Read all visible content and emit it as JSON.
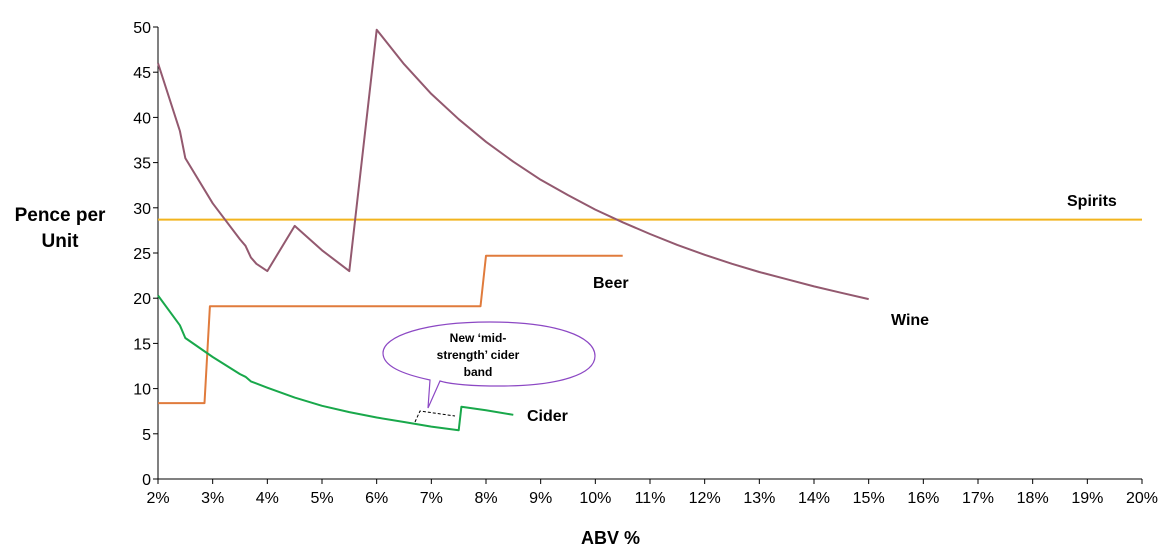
{
  "chart_data": {
    "type": "line",
    "xlabel": "ABV %",
    "ylabel_line1": "Pence per",
    "ylabel_line2": "Unit",
    "xlim": [
      2,
      20
    ],
    "ylim": [
      0,
      50
    ],
    "x_ticks": [
      2,
      3,
      4,
      5,
      6,
      7,
      8,
      9,
      10,
      11,
      12,
      13,
      14,
      15,
      16,
      17,
      18,
      19,
      20
    ],
    "x_tick_labels": [
      "2%",
      "3%",
      "4%",
      "5%",
      "6%",
      "7%",
      "8%",
      "9%",
      "10%",
      "11%",
      "12%",
      "13%",
      "14%",
      "15%",
      "16%",
      "17%",
      "18%",
      "19%",
      "20%"
    ],
    "y_ticks": [
      0,
      5,
      10,
      15,
      20,
      25,
      30,
      35,
      40,
      45,
      50
    ],
    "grid": false,
    "series": [
      {
        "name": "Spirits",
        "color": "#f2b41e",
        "points": [
          [
            2,
            28.7
          ],
          [
            20,
            28.7
          ]
        ]
      },
      {
        "name": "Wine",
        "color": "#93596f",
        "points": [
          [
            2,
            46
          ],
          [
            2.4,
            38.5
          ],
          [
            2.5,
            35.5
          ],
          [
            3,
            30.5
          ],
          [
            3.5,
            26.5
          ],
          [
            3.6,
            25.8
          ],
          [
            3.7,
            24.5
          ],
          [
            3.8,
            23.8
          ],
          [
            4,
            23.0
          ],
          [
            4.5,
            28.0
          ],
          [
            5,
            25.3
          ],
          [
            5.5,
            23.0
          ],
          [
            6,
            49.7
          ],
          [
            6.5,
            45.9
          ],
          [
            7,
            42.6
          ],
          [
            7.5,
            39.8
          ],
          [
            8,
            37.3
          ],
          [
            8.5,
            35.1
          ],
          [
            9,
            33.1
          ],
          [
            9.5,
            31.4
          ],
          [
            10,
            29.8
          ],
          [
            10.5,
            28.4
          ],
          [
            11,
            27.1
          ],
          [
            11.5,
            25.9
          ],
          [
            12,
            24.8
          ],
          [
            12.5,
            23.8
          ],
          [
            13,
            22.9
          ],
          [
            13.5,
            22.1
          ],
          [
            14,
            21.3
          ],
          [
            14.5,
            20.6
          ],
          [
            15,
            19.9
          ]
        ]
      },
      {
        "name": "Beer",
        "color": "#e07b3c",
        "points": [
          [
            2,
            8.4
          ],
          [
            2.85,
            8.4
          ],
          [
            2.95,
            19.1
          ],
          [
            7.9,
            19.1
          ],
          [
            8,
            24.7
          ],
          [
            10.5,
            24.7
          ]
        ]
      },
      {
        "name": "Cider",
        "color": "#19a84b",
        "points": [
          [
            2,
            20.3
          ],
          [
            2.4,
            17.0
          ],
          [
            2.5,
            15.6
          ],
          [
            3,
            13.5
          ],
          [
            3.5,
            11.6
          ],
          [
            3.6,
            11.3
          ],
          [
            3.7,
            10.8
          ],
          [
            4,
            10.1
          ],
          [
            4.5,
            9.0
          ],
          [
            5,
            8.1
          ],
          [
            5.5,
            7.4
          ],
          [
            6,
            6.8
          ],
          [
            6.5,
            6.3
          ],
          [
            7,
            5.8
          ],
          [
            7.5,
            5.4
          ],
          [
            7.55,
            8.0
          ],
          [
            8,
            7.6
          ],
          [
            8.5,
            7.1
          ]
        ]
      }
    ],
    "annotations": {
      "spirits": "Spirits",
      "beer": "Beer",
      "wine": "Wine",
      "cider": "Cider",
      "callout_line1": "New ‘mid-",
      "callout_line2": "strength’ cider",
      "callout_line3": "band"
    }
  }
}
